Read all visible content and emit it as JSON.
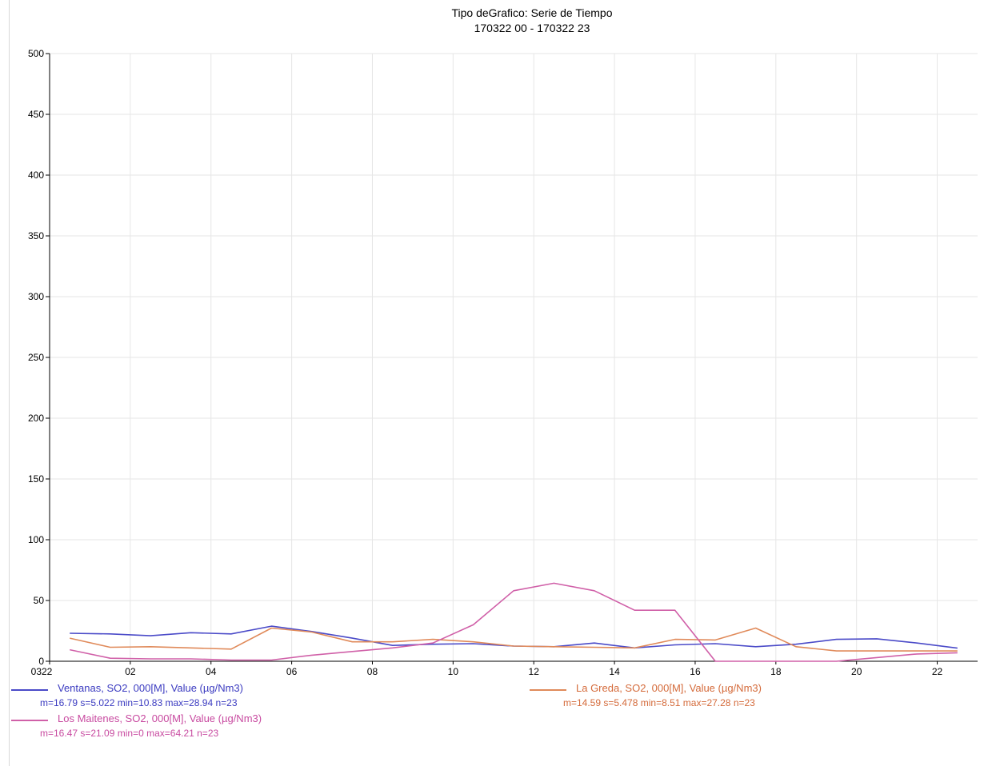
{
  "chart_data": {
    "type": "line",
    "title": "Tipo deGrafico: Serie de Tiempo",
    "subtitle": "170322 00 - 170322 23",
    "ylim": [
      0,
      500
    ],
    "yticks": [
      0,
      50,
      100,
      150,
      200,
      250,
      300,
      350,
      400,
      450,
      500
    ],
    "xlim": [
      0,
      23
    ],
    "xticks": [
      {
        "x": 0,
        "label": "0322"
      },
      {
        "x": 2,
        "label": "02"
      },
      {
        "x": 4,
        "label": "04"
      },
      {
        "x": 6,
        "label": "06"
      },
      {
        "x": 8,
        "label": "08"
      },
      {
        "x": 10,
        "label": "10"
      },
      {
        "x": 12,
        "label": "12"
      },
      {
        "x": 14,
        "label": "14"
      },
      {
        "x": 16,
        "label": "16"
      },
      {
        "x": 18,
        "label": "18"
      },
      {
        "x": 20,
        "label": "20"
      },
      {
        "x": 22,
        "label": "22"
      }
    ],
    "grid": true,
    "x": [
      0.5,
      1.5,
      2.5,
      3.5,
      4.5,
      5.5,
      6.5,
      7.5,
      8.5,
      9.5,
      10.5,
      11.5,
      12.5,
      13.5,
      14.5,
      15.5,
      16.5,
      17.5,
      18.5,
      19.5,
      20.5,
      21.5,
      22.5
    ],
    "series": [
      {
        "name": "Ventanas, SO2, 000[M], Value (µg/Nm3)",
        "stats": "m=16.79 s=5.022 min=10.83 max=28.94 n=23",
        "color": "#4a4ac8",
        "values": [
          23,
          22.5,
          21,
          23.5,
          22.5,
          28.9,
          24.5,
          19,
          13,
          14,
          14.5,
          12.5,
          12,
          15,
          11,
          13.5,
          14.5,
          12,
          14,
          18,
          18.5,
          15,
          10.8
        ]
      },
      {
        "name": "La Greda, SO2, 000[M], Value (µg/Nm3)",
        "stats": "m=14.59 s=5.478 min=8.51 max=27.28 n=23",
        "color": "#e08a5a",
        "values": [
          19,
          11.5,
          12,
          11,
          10,
          27.3,
          24,
          16,
          16,
          18,
          16,
          12.5,
          12,
          11.5,
          11,
          18,
          17.5,
          27.3,
          12,
          8.5,
          8.5,
          8.5,
          8.5
        ]
      },
      {
        "name": "Los Maitenes, SO2, 000[M], Value (µg/Nm3)",
        "stats": "m=16.47 s=21.09 min=0 max=64.21 n=23",
        "color": "#d060a8",
        "values": [
          9.5,
          2.5,
          2,
          2,
          1,
          1,
          5,
          8,
          11,
          15,
          30,
          58,
          64.2,
          58,
          42,
          42,
          0,
          0,
          0,
          0,
          3,
          6,
          7
        ]
      }
    ]
  }
}
